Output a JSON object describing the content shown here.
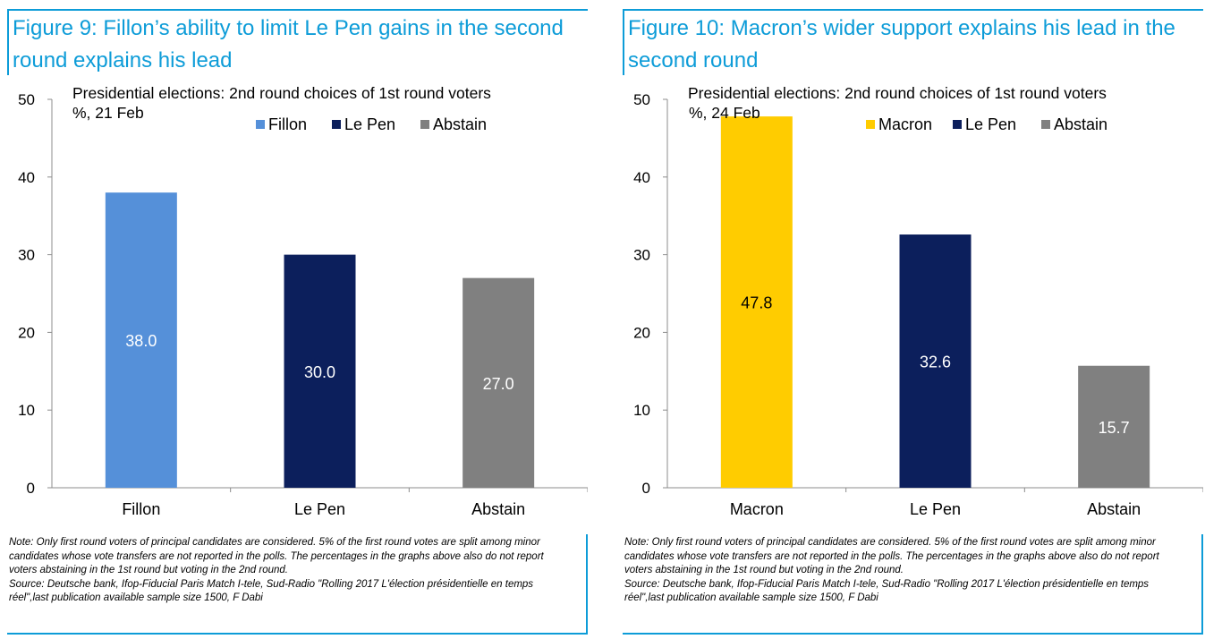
{
  "charts": [
    {
      "figure_title": "Figure 9: Fillon’s ability to limit Le Pen gains in the second round explains his lead",
      "note": "Note: Only first round voters of principal candidates are considered. 5% of the first round votes are split among minor candidates whose vote transfers are not reported in the polls. The percentages in the graphs above also do not report voters abstaining in the 1st round but voting in the 2nd round.",
      "source": "Source: Deutsche bank, Ifop-Fiducial Paris Match I-tele, Sud-Radio \"Rolling 2017 L'élection présidentielle en temps réel\",last publication available sample size 1500, F Dabi",
      "chart_data": {
        "type": "bar",
        "title": "Presidential elections: 2nd round choices of 1st round voters",
        "subtitle": "%, 21 Feb",
        "categories": [
          "Fillon",
          "Le Pen",
          "Abstain"
        ],
        "values": [
          38.0,
          30.0,
          27.0
        ],
        "value_labels": [
          "38.0",
          "30.0",
          "27.0"
        ],
        "colors": [
          "#5590d9",
          "#0c1f5c",
          "#808080"
        ],
        "label_colors": [
          "#ffffff",
          "#ffffff",
          "#ffffff"
        ],
        "legend": [
          "Fillon",
          "Le Pen",
          "Abstain"
        ],
        "yticks": [
          "0",
          "10",
          "20",
          "30",
          "40",
          "50"
        ],
        "ylim": [
          0,
          50
        ],
        "xlabel": "",
        "ylabel": ""
      }
    },
    {
      "figure_title": "Figure 10: Macron’s wider support explains his lead in the second round",
      "note": "Note: Only first round voters of principal candidates are considered. 5% of the first round votes are split among minor candidates whose vote transfers are not reported in the polls. The percentages in the graphs above also do not report voters abstaining in the 1st round but voting in the 2nd round.",
      "source": "Source: Deutsche bank, Ifop-Fiducial Paris Match I-tele, Sud-Radio \"Rolling 2017 L'élection présidentielle en temps réel\",last publication available sample size 1500, F Dabi",
      "chart_data": {
        "type": "bar",
        "title": "Presidential elections: 2nd round choices of 1st round voters",
        "subtitle": "%, 24 Feb",
        "categories": [
          "Macron",
          "Le Pen",
          "Abstain"
        ],
        "values": [
          47.8,
          32.6,
          15.7
        ],
        "value_labels": [
          "47.8",
          "32.6",
          "15.7"
        ],
        "colors": [
          "#ffcc00",
          "#0c1f5c",
          "#808080"
        ],
        "label_colors": [
          "#000000",
          "#ffffff",
          "#ffffff"
        ],
        "legend": [
          "Macron",
          "Le Pen",
          "Abstain"
        ],
        "yticks": [
          "0",
          "10",
          "20",
          "30",
          "40",
          "50"
        ],
        "ylim": [
          0,
          50
        ],
        "xlabel": "",
        "ylabel": ""
      }
    }
  ]
}
